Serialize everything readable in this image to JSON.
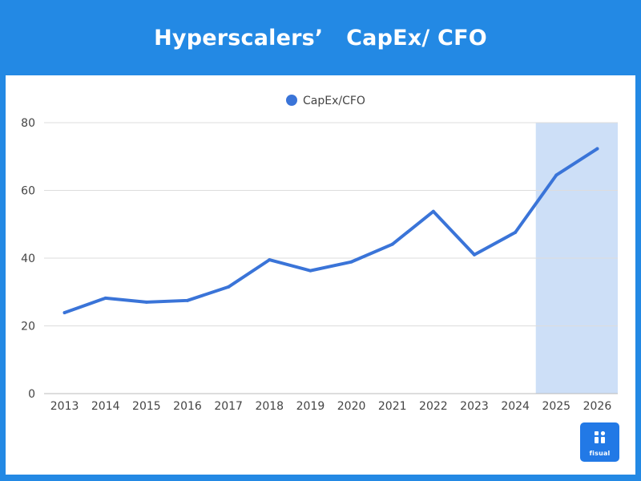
{
  "header": {
    "title": "Hyperscalers’   CapEx/ CFO"
  },
  "colors": {
    "background": "#2389e4",
    "line": "#3a74d8",
    "highlight": "#cddff7",
    "grid": "#dddddd",
    "logo": "#2279e6"
  },
  "logo": {
    "text": "fisual",
    "icon": "fisual-logo-icon"
  },
  "chart_data": {
    "type": "line",
    "title": "Hyperscalers’   CapEx/ CFO",
    "xlabel": "",
    "ylabel": "",
    "categories": [
      "2013",
      "2014",
      "2015",
      "2016",
      "2017",
      "2018",
      "2019",
      "2020",
      "2021",
      "2022",
      "2023",
      "2024",
      "2025",
      "2026"
    ],
    "series": [
      {
        "name": "CapEx/CFO",
        "values": [
          23.9,
          28.2,
          27.0,
          27.5,
          31.5,
          39.5,
          36.3,
          38.9,
          44.1,
          53.8,
          41.0,
          47.6,
          64.5,
          72.3
        ]
      }
    ],
    "ylim": [
      0,
      80
    ],
    "yticks": [
      0,
      20,
      40,
      60,
      80
    ],
    "grid": true,
    "legend": "top-center",
    "highlight_range": [
      "2025",
      "2026"
    ]
  }
}
